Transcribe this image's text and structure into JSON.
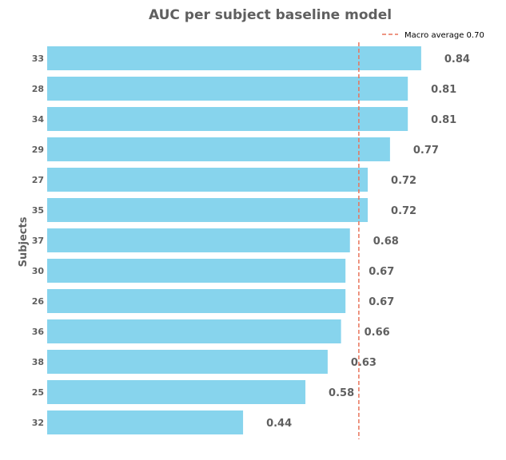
{
  "chart_data": {
    "type": "bar",
    "orientation": "horizontal",
    "title": "AUC per subject baseline model",
    "xlabel": "",
    "ylabel": "Subjects",
    "categories": [
      "33",
      "28",
      "34",
      "29",
      "27",
      "35",
      "37",
      "30",
      "26",
      "36",
      "38",
      "25",
      "32"
    ],
    "values": [
      0.84,
      0.81,
      0.81,
      0.77,
      0.72,
      0.72,
      0.68,
      0.67,
      0.67,
      0.66,
      0.63,
      0.58,
      0.44
    ],
    "value_labels": [
      "0.84",
      "0.81",
      "0.81",
      "0.77",
      "0.72",
      "0.72",
      "0.68",
      "0.67",
      "0.67",
      "0.66",
      "0.63",
      "0.58",
      "0.44"
    ],
    "xlim": [
      0,
      1
    ],
    "reference_line": {
      "value": 0.7,
      "label": "Macro average 0.70",
      "style": "dashed"
    },
    "legend": {
      "placement": "top-right",
      "entries": [
        "Macro average 0.70"
      ]
    },
    "grid": false,
    "colors": {
      "bar": "#87D4ED",
      "reference_line": "#E8735A",
      "text": "#5F5F5F"
    }
  }
}
